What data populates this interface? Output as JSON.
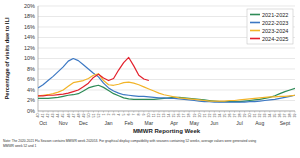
{
  "chart_data": {
    "type": "line",
    "x_label": "MMWR Reporting Week",
    "y_label": "Percentage of visits due to ILI",
    "categories": [
      "40",
      "41",
      "42",
      "43",
      "44",
      "45",
      "46",
      "47",
      "48",
      "49",
      "50",
      "51",
      "52",
      "1",
      "2",
      "3",
      "4",
      "5",
      "6",
      "7",
      "8",
      "9",
      "10",
      "11",
      "12",
      "13",
      "14",
      "15",
      "16",
      "17",
      "18",
      "19",
      "20",
      "21",
      "22",
      "23",
      "24",
      "25",
      "26",
      "27",
      "28",
      "29",
      "30",
      "31",
      "32",
      "33",
      "34",
      "35",
      "36",
      "37",
      "38",
      "39"
    ],
    "annotations": [
      {
        "text": "Oct",
        "category": "41"
      },
      {
        "text": "Nov",
        "category": "45"
      },
      {
        "text": "Dec",
        "category": "49"
      },
      {
        "text": "Jan",
        "category": "2"
      },
      {
        "text": "Feb",
        "category": "6"
      },
      {
        "text": "Mar",
        "category": "10"
      },
      {
        "text": "Apr",
        "category": "15"
      },
      {
        "text": "May",
        "category": "19"
      },
      {
        "text": "Jun",
        "category": "23"
      },
      {
        "text": "Jul",
        "category": "28"
      },
      {
        "text": "Aug",
        "category": "32"
      },
      {
        "text": "Sept",
        "category": "37"
      }
    ],
    "note": [
      "Note: The 2020-2021 Flu Season contains MMWR week 202053. For graphical display compatibility with seasons containing 52 weeks, average values were generated using",
      "MMWR week 52 and 1"
    ],
    "series": [
      {
        "name": "2021-2022",
        "color": "#2e8b57",
        "values": [
          2.4,
          2.4,
          2.4,
          2.5,
          2.6,
          2.8,
          3.0,
          3.1,
          3.3,
          3.8,
          4.4,
          4.7,
          4.9,
          4.5,
          3.9,
          3.3,
          2.9,
          2.5,
          2.3,
          2.2,
          2.2,
          2.2,
          2.2,
          2.2,
          2.3,
          2.4,
          2.5,
          2.6,
          2.6,
          2.5,
          2.4,
          2.3,
          2.2,
          2.1,
          2.0,
          1.9,
          1.8,
          1.8,
          1.8,
          1.8,
          1.8,
          1.9,
          2.0,
          2.1,
          2.2,
          2.4,
          2.6,
          2.9,
          3.3,
          3.7,
          4.0,
          4.3
        ]
      },
      {
        "name": "2022-2023",
        "color": "#3c78c3",
        "values": [
          4.4,
          5.0,
          5.8,
          6.6,
          7.5,
          8.4,
          9.5,
          10.0,
          9.6,
          8.8,
          8.0,
          7.2,
          6.5,
          5.3,
          4.4,
          3.8,
          3.4,
          3.1,
          3.0,
          2.9,
          2.8,
          2.8,
          2.7,
          2.6,
          2.5,
          2.5,
          2.4,
          2.4,
          2.3,
          2.2,
          2.1,
          2.0,
          1.9,
          1.8,
          1.8,
          1.7,
          1.7,
          1.7,
          1.7,
          1.7,
          1.7,
          1.7,
          1.8,
          1.8,
          1.9,
          2.0,
          2.1,
          2.2,
          2.4,
          2.6,
          2.8,
          3.0
        ]
      },
      {
        "name": "2023-2024",
        "color": "#f2b428",
        "values": [
          2.9,
          3.0,
          3.1,
          3.3,
          3.6,
          4.0,
          4.7,
          5.4,
          5.6,
          5.8,
          6.2,
          6.8,
          7.1,
          5.8,
          5.0,
          4.9,
          5.1,
          5.4,
          5.5,
          5.3,
          5.0,
          4.6,
          4.2,
          3.8,
          3.4,
          3.1,
          2.9,
          2.7,
          2.5,
          2.4,
          2.3,
          2.2,
          2.1,
          2.0,
          1.9,
          1.9,
          1.9,
          1.9,
          2.0,
          2.0,
          2.1,
          2.2,
          2.3,
          2.4,
          2.5,
          2.6,
          2.7,
          2.7,
          2.8,
          2.8,
          2.9,
          3.0
        ]
      },
      {
        "name": "2024-2025",
        "color": "#e3202c",
        "values": [
          2.9,
          2.9,
          3.0,
          3.0,
          3.1,
          3.2,
          3.4,
          3.7,
          4.0,
          4.6,
          5.3,
          6.4,
          7.0,
          6.3,
          5.8,
          6.2,
          7.8,
          9.2,
          10.2,
          8.6,
          6.8,
          6.1,
          5.8,
          null,
          null,
          null,
          null,
          null,
          null,
          null,
          null,
          null,
          null,
          null,
          null,
          null,
          null,
          null,
          null,
          null,
          null,
          null,
          null,
          null,
          null,
          null,
          null,
          null,
          null,
          null,
          null,
          null
        ]
      }
    ],
    "ylim": [
      0,
      20
    ],
    "yticks": [
      {
        "value": 0,
        "label": "0%"
      },
      {
        "value": 2,
        "label": "2%"
      },
      {
        "value": 4,
        "label": "4%"
      },
      {
        "value": 6,
        "label": "6%"
      },
      {
        "value": 8,
        "label": "8%"
      },
      {
        "value": 10,
        "label": "10%"
      },
      {
        "value": 12,
        "label": "12%"
      },
      {
        "value": 14,
        "label": "14%"
      },
      {
        "value": 16,
        "label": "16%"
      },
      {
        "value": 18,
        "label": "18%"
      },
      {
        "value": 20,
        "label": "20%"
      }
    ],
    "grid": true,
    "legend": "upper right"
  }
}
